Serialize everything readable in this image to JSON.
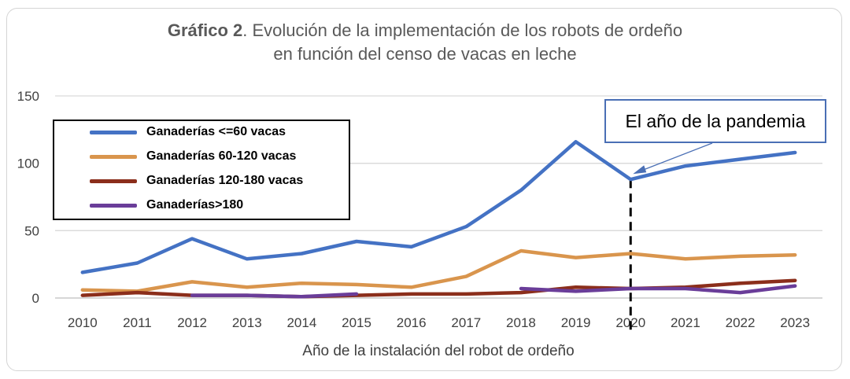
{
  "title": {
    "bold": "Gráfico 2",
    "rest": ". Evolución de la implementación de los robots de ordeño",
    "line2": "en función del censo de vacas en leche"
  },
  "annotation": {
    "text": "El año de la pandemia",
    "target_year": "2020"
  },
  "colors": {
    "series_1": "#4472c4",
    "series_2": "#d9954d",
    "series_3": "#8b2e1b",
    "series_4": "#6a3d99",
    "grid": "#d9d9d9",
    "callout_border": "#4a6fb5"
  },
  "chart_data": {
    "type": "line",
    "xlabel": "Año de la instalación del robot de ordeño",
    "ylabel": "",
    "ylim": [
      0,
      150
    ],
    "yticks": [
      "0",
      "50",
      "100",
      "150"
    ],
    "grid": "horizontal",
    "legend_position": "top-left",
    "categories": [
      "2010",
      "2011",
      "2012",
      "2013",
      "2014",
      "2015",
      "2016",
      "2017",
      "2018",
      "2019",
      "2020",
      "2021",
      "2022",
      "2023"
    ],
    "series": [
      {
        "name": "Ganaderías  <=60 vacas",
        "values": [
          19,
          26,
          44,
          29,
          33,
          42,
          38,
          53,
          80,
          116,
          88,
          98,
          103,
          108
        ]
      },
      {
        "name": "Ganaderías 60-120 vacas",
        "values": [
          6,
          5,
          12,
          8,
          11,
          10,
          8,
          16,
          35,
          30,
          33,
          29,
          31,
          32
        ]
      },
      {
        "name": "Ganaderías 120-180 vacas",
        "values": [
          2,
          4,
          2,
          2,
          1,
          2,
          3,
          3,
          4,
          8,
          7,
          8,
          11,
          13
        ]
      },
      {
        "name": "Ganaderías>180",
        "values": [
          null,
          null,
          2,
          2,
          1,
          3,
          null,
          null,
          7,
          5,
          7,
          7,
          4,
          9
        ]
      }
    ]
  }
}
